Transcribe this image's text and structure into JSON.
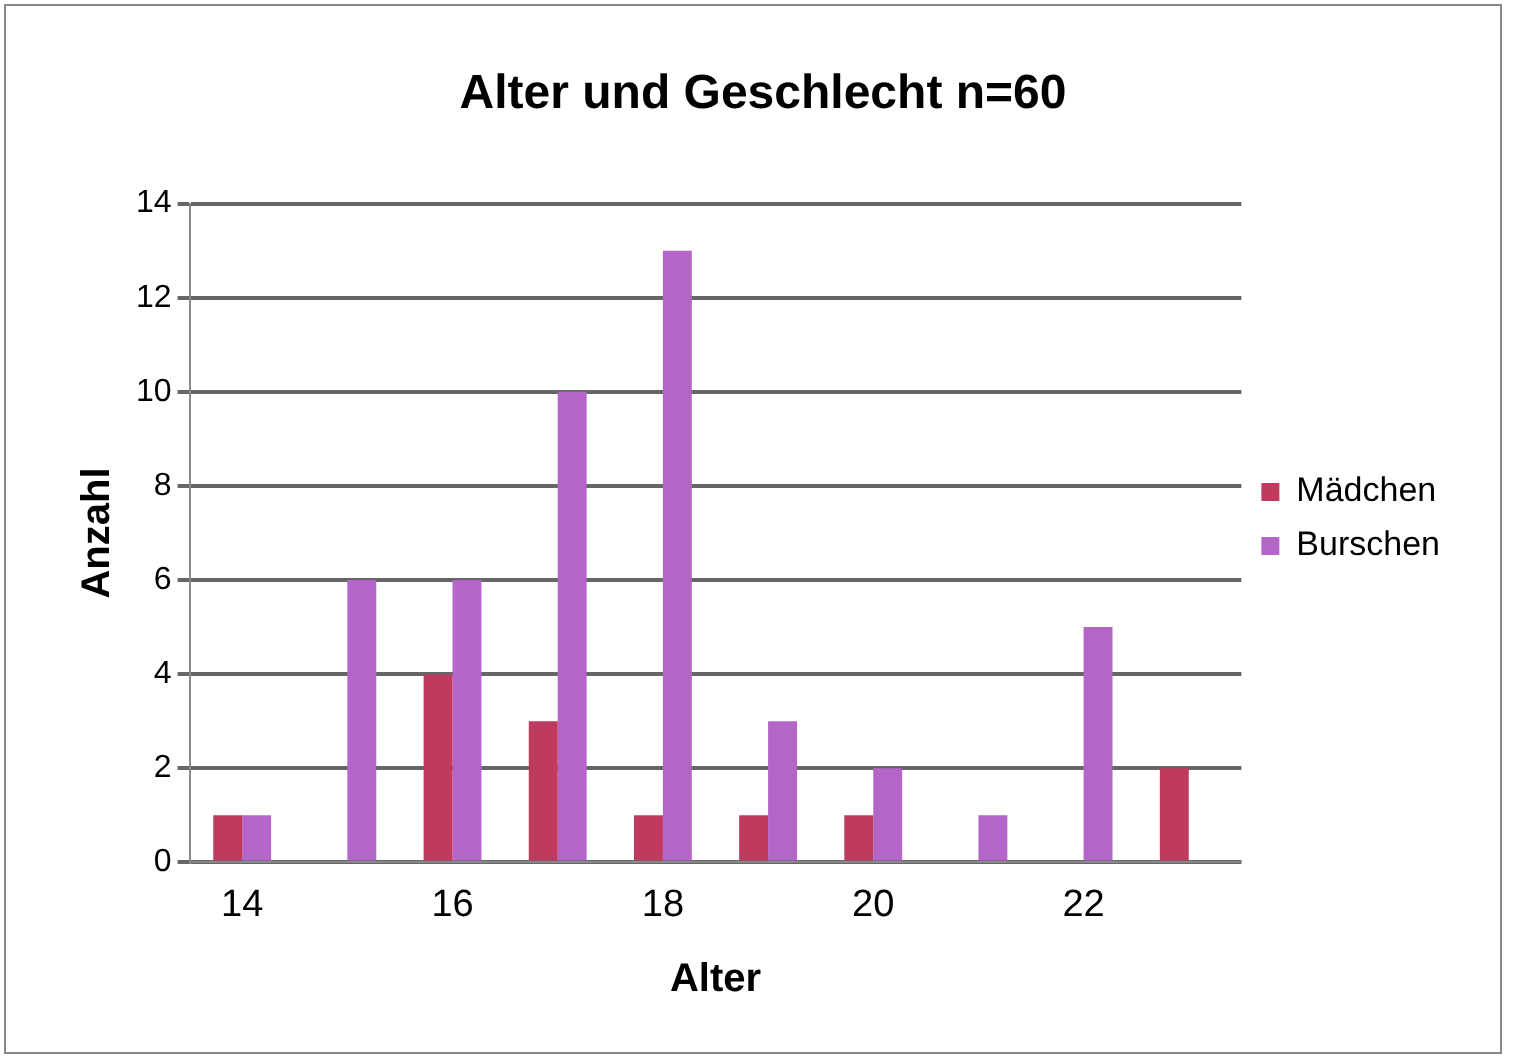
{
  "chart_data": {
    "type": "bar",
    "title": "Alter und Geschlecht n=60",
    "xlabel": "Alter",
    "ylabel": "Anzahl",
    "categories": [
      "14",
      null,
      "16",
      null,
      "18",
      null,
      "20",
      null,
      "22",
      null
    ],
    "series": [
      {
        "name": "Mädchen",
        "color": "#c0395f",
        "values": [
          1,
          0,
          4,
          3,
          1,
          1,
          1,
          0,
          0,
          2
        ]
      },
      {
        "name": "Burschen",
        "color": "#b466c8",
        "values": [
          1,
          6,
          6,
          10,
          13,
          3,
          2,
          1,
          5,
          0
        ]
      }
    ],
    "ylim": [
      0,
      14
    ],
    "yticks": [
      0,
      2,
      4,
      6,
      8,
      10,
      12,
      14
    ],
    "grid": "y",
    "legend": "right"
  }
}
